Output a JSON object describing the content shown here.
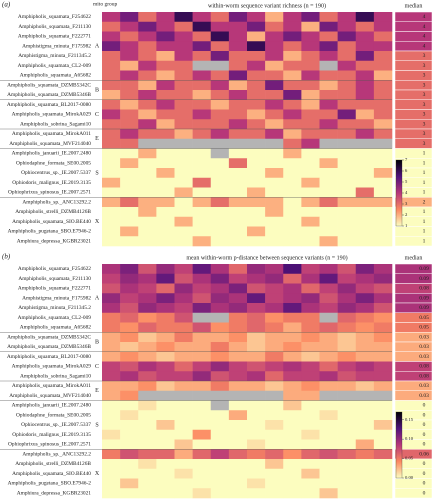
{
  "chart_data": [
    {
      "type": "heatmap",
      "panel_label": "(a)",
      "group_header": "mito group",
      "median_header": "median",
      "title": "within-worm sequence variant richness (n = 190)",
      "rows": [
        "Amphipholis_squamata_F254622",
        "Amphipholis_squamata_F211130",
        "Amphipholis_squamata_F222771",
        "Amphistigma_minuta_F175982",
        "Amphistigma_minuta_F211345.2",
        "Amphipholis_squamata_CL2-009",
        "Amphipholis_squamata_A65682",
        "Amphipholis_squamata_DZMB5342C",
        "Amphipholis_squamata_DZMB5346B",
        "Amphipholis_squamata_BL2017-0080",
        "Amphipholis_squamata_MirokA029",
        "Amphipholis_sobrina_Sagami10",
        "Amphipholis_squamata_MirokA011",
        "Amphipholis_squamata_MVF214040",
        "Amphipholis_januarii_IE.2007.2480",
        "Ophiodaphne_formata_SE00.2005",
        "Ophiocentrus_sp._IE.2007.5337",
        "Ophiodoris_malignus_IE.2019.3135",
        "Ophiophrixus_spinosus_IE.2007.2571",
        "Amphipholis_sp._ANC13292.2",
        "Amphipholis_strelli_DZMB4126B",
        "Amphipholis_squamata_SIO.BE440",
        "Amphipholis_pugetana_SBO.E7946-2",
        "Amphiura_depressa_KGBR23021"
      ],
      "group_of_row": [
        "A",
        "A",
        "A",
        "A",
        "A",
        "A",
        "A",
        "B",
        "B",
        "C",
        "C",
        "C",
        "E",
        "E",
        "S",
        "S",
        "S",
        "S",
        "S",
        "X",
        "X",
        "X",
        "X",
        "X"
      ],
      "values": [
        [
          4,
          5,
          3,
          4,
          6,
          4,
          3,
          5,
          4,
          2,
          4,
          5,
          3,
          4,
          6,
          4
        ],
        [
          3,
          4,
          5,
          4,
          3,
          6,
          4,
          4,
          5,
          3,
          4,
          2,
          5,
          4,
          3,
          4
        ],
        [
          4,
          3,
          4,
          5,
          4,
          3,
          6,
          4,
          2,
          4,
          5,
          4,
          3,
          5,
          4,
          3
        ],
        [
          5,
          4,
          3,
          4,
          4,
          5,
          3,
          4,
          6,
          4,
          3,
          4,
          5,
          3,
          4,
          4
        ],
        [
          3,
          4,
          3,
          2,
          4,
          3,
          5,
          3,
          3,
          4,
          2,
          3,
          4,
          3,
          5,
          3
        ],
        [
          3,
          2,
          4,
          3,
          3,
          null,
          null,
          3,
          4,
          2,
          3,
          3,
          null,
          4,
          3,
          3
        ],
        [
          3,
          4,
          3,
          2,
          3,
          4,
          3,
          5,
          3,
          3,
          2,
          4,
          3,
          3,
          4,
          2
        ],
        [
          3,
          3,
          2,
          4,
          3,
          3,
          4,
          2,
          3,
          5,
          3,
          3,
          2,
          3,
          4,
          3
        ],
        [
          2,
          3,
          4,
          3,
          3,
          2,
          3,
          4,
          3,
          3,
          5,
          2,
          3,
          3,
          4,
          3
        ],
        [
          3,
          2,
          3,
          4,
          3,
          3,
          2,
          3,
          3,
          4,
          3,
          2,
          4,
          3,
          3,
          3
        ],
        [
          4,
          3,
          2,
          3,
          3,
          4,
          3,
          3,
          2,
          3,
          4,
          3,
          3,
          5,
          2,
          3
        ],
        [
          3,
          3,
          4,
          2,
          3,
          3,
          3,
          4,
          3,
          2,
          3,
          3,
          4,
          3,
          3,
          2
        ],
        [
          3,
          4,
          3,
          3,
          2,
          3,
          4,
          3,
          3,
          4,
          2,
          3,
          3,
          3,
          4,
          3
        ],
        [
          3,
          3,
          null,
          null,
          null,
          null,
          null,
          null,
          null,
          null,
          3,
          4,
          null,
          null,
          null,
          null
        ],
        [
          1,
          1,
          2,
          1,
          1,
          1,
          null,
          1,
          1,
          1,
          2,
          1,
          1,
          1,
          1,
          1
        ],
        [
          1,
          2,
          1,
          1,
          1,
          1,
          1,
          3,
          1,
          1,
          1,
          1,
          2,
          1,
          1,
          1
        ],
        [
          1,
          1,
          1,
          2,
          1,
          1,
          1,
          1,
          1,
          2,
          1,
          1,
          1,
          1,
          1,
          2
        ],
        [
          2,
          1,
          1,
          1,
          1,
          3,
          1,
          1,
          1,
          1,
          1,
          2,
          1,
          1,
          1,
          1
        ],
        [
          1,
          1,
          1,
          1,
          2,
          1,
          1,
          1,
          2,
          1,
          1,
          1,
          1,
          1,
          3,
          1
        ],
        [
          2,
          3,
          2,
          2,
          1,
          2,
          3,
          2,
          2,
          2,
          1,
          2,
          3,
          2,
          2,
          2
        ],
        [
          1,
          1,
          2,
          1,
          1,
          1,
          1,
          1,
          1,
          2,
          1,
          1,
          1,
          1,
          1,
          1
        ],
        [
          1,
          1,
          1,
          1,
          2,
          1,
          1,
          1,
          1,
          1,
          1,
          2,
          1,
          1,
          1,
          1
        ],
        [
          1,
          2,
          1,
          1,
          1,
          1,
          1,
          1,
          2,
          1,
          1,
          1,
          1,
          1,
          1,
          1
        ],
        [
          1,
          1,
          1,
          1,
          1,
          2,
          1,
          1,
          1,
          1,
          1,
          1,
          2,
          1,
          1,
          1
        ]
      ],
      "medians": [
        4,
        4,
        4,
        4,
        3,
        3,
        3,
        3,
        3,
        3,
        3,
        3,
        3,
        3,
        1,
        1,
        1,
        1,
        1,
        2,
        1,
        1,
        1,
        1
      ],
      "clim": [
        1,
        7
      ],
      "cticks": [
        1,
        2,
        3,
        4,
        5,
        6,
        7
      ],
      "colormap": [
        "#fcfdbf",
        "#fc8961",
        "#b73779",
        "#51127c",
        "#000004"
      ],
      "missing_color": "#b4b4b4"
    },
    {
      "type": "heatmap",
      "panel_label": "(b)",
      "median_header": "median",
      "title": "mean within-worm p-distance between sequence variants (n = 190)",
      "rows": [
        "Amphipholis_squamata_F254622",
        "Amphipholis_squamata_F211130",
        "Amphipholis_squamata_F222771",
        "Amphistigma_minuta_F175982",
        "Amphistigma_minuta_F211345.2",
        "Amphipholis_squamata_CL2-009",
        "Amphipholis_squamata_A65682",
        "Amphipholis_squamata_DZMB5342C",
        "Amphipholis_squamata_DZMB5346B",
        "Amphipholis_squamata_BL2017-0080",
        "Amphipholis_squamata_MirokA029",
        "Amphipholis_sobrina_Sagami10",
        "Amphipholis_squamata_MirokA011",
        "Amphipholis_squamata_MVF214040",
        "Amphipholis_januarii_IE.2007.2480",
        "Ophiodaphne_formata_SE00.2005",
        "Ophiocentrus_sp._IE.2007.5337",
        "Ophiodoris_malignus_IE.2019.3135",
        "Ophiophrixus_spinosus_IE.2007.2571",
        "Amphipholis_sp._ANC13292.2",
        "Amphipholis_strelli_DZMB4126B",
        "Amphipholis_squamata_SIO.BE440",
        "Amphipholis_pugetana_SBO.E7946-2",
        "Amphiura_depressa_KGBR23021"
      ],
      "group_of_row": [
        "A",
        "A",
        "A",
        "A",
        "A",
        "A",
        "A",
        "B",
        "B",
        "C",
        "C",
        "C",
        "E",
        "E",
        "S",
        "S",
        "S",
        "S",
        "S",
        "X",
        "X",
        "X",
        "X",
        "X"
      ],
      "values": [
        [
          0.09,
          0.11,
          0.07,
          0.1,
          0.08,
          0.12,
          0.09,
          0.06,
          0.1,
          0.09,
          0.13,
          0.08,
          0.09,
          0.07,
          0.11,
          0.09
        ],
        [
          0.08,
          0.1,
          0.09,
          0.12,
          0.07,
          0.09,
          0.11,
          0.08,
          0.09,
          0.1,
          0.06,
          0.09,
          0.12,
          0.08,
          0.09,
          0.1
        ],
        [
          0.07,
          0.09,
          0.08,
          0.06,
          0.1,
          0.08,
          0.09,
          0.11,
          0.07,
          0.08,
          0.09,
          0.06,
          0.08,
          0.1,
          0.08,
          0.07
        ],
        [
          0.1,
          0.08,
          0.09,
          0.11,
          0.09,
          0.07,
          0.1,
          0.09,
          0.12,
          0.08,
          0.09,
          0.1,
          0.07,
          0.09,
          0.11,
          0.09
        ],
        [
          0.09,
          0.07,
          0.1,
          0.09,
          0.08,
          0.11,
          0.09,
          0.1,
          0.08,
          0.09,
          0.12,
          0.09,
          0.08,
          0.1,
          0.09,
          0.07
        ],
        [
          0.05,
          0.06,
          0.04,
          0.05,
          0.07,
          null,
          null,
          0.05,
          0.06,
          0.04,
          0.05,
          0.05,
          null,
          0.06,
          0.05,
          0.04
        ],
        [
          0.05,
          0.04,
          0.06,
          0.05,
          0.05,
          0.07,
          0.04,
          0.05,
          0.06,
          0.05,
          0.03,
          0.05,
          0.06,
          0.05,
          0.04,
          0.05
        ],
        [
          0.03,
          0.04,
          0.02,
          0.03,
          0.05,
          0.03,
          0.03,
          0.04,
          0.02,
          0.03,
          0.03,
          0.04,
          0.03,
          0.02,
          0.03,
          0.04
        ],
        [
          0.03,
          0.02,
          0.03,
          0.04,
          0.03,
          0.03,
          0.05,
          0.03,
          0.02,
          0.03,
          0.04,
          0.03,
          0.03,
          0.02,
          0.03,
          0.03
        ],
        [
          0.03,
          0.04,
          0.03,
          0.02,
          0.03,
          0.03,
          0.04,
          0.03,
          0.03,
          0.05,
          0.03,
          0.02,
          0.03,
          0.04,
          0.03,
          0.03
        ],
        [
          0.08,
          0.07,
          0.09,
          0.08,
          0.06,
          0.08,
          0.1,
          0.08,
          0.07,
          0.08,
          0.09,
          0.08,
          0.06,
          0.08,
          0.09,
          0.08
        ],
        [
          0.08,
          0.09,
          0.07,
          0.08,
          0.08,
          0.1,
          0.07,
          0.08,
          0.09,
          0.06,
          0.08,
          0.08,
          0.09,
          0.07,
          0.08,
          0.08
        ],
        [
          0.03,
          0.03,
          0.04,
          0.02,
          0.03,
          0.03,
          0.05,
          0.03,
          0.03,
          0.02,
          0.03,
          0.04,
          0.03,
          0.03,
          0.02,
          0.03
        ],
        [
          0.03,
          0.04,
          null,
          null,
          null,
          null,
          null,
          null,
          null,
          null,
          0.03,
          0.03,
          null,
          null,
          null,
          null
        ],
        [
          0,
          0,
          0.01,
          0,
          0,
          0,
          null,
          0,
          0,
          0,
          0.02,
          0,
          0,
          0,
          0,
          0
        ],
        [
          0,
          0.01,
          0,
          0,
          0,
          0,
          0,
          0.03,
          0,
          0,
          0,
          0,
          0.01,
          0,
          0,
          0
        ],
        [
          0,
          0,
          0,
          0.02,
          0,
          0,
          0,
          0,
          0,
          0.01,
          0,
          0,
          0,
          0,
          0,
          0.02
        ],
        [
          0.01,
          0,
          0,
          0,
          0,
          0.04,
          0,
          0,
          0,
          0,
          0,
          0.01,
          0,
          0,
          0,
          0
        ],
        [
          0,
          0,
          0,
          0,
          0.02,
          0,
          0,
          0,
          0.01,
          0,
          0,
          0,
          0,
          0,
          0.03,
          0
        ],
        [
          0.05,
          0.07,
          0.06,
          0.06,
          0.03,
          0.06,
          0.08,
          0.06,
          0.05,
          0.06,
          0.04,
          0.06,
          0.07,
          0.06,
          0.05,
          0.06
        ],
        [
          0,
          0,
          0.01,
          0,
          0,
          0,
          0,
          0,
          0,
          0.02,
          0,
          0,
          0,
          0,
          0,
          0
        ],
        [
          0,
          0,
          0,
          0,
          0.01,
          0,
          0,
          0,
          0,
          0,
          0,
          0.02,
          0,
          0,
          0,
          0
        ],
        [
          0,
          0.02,
          0,
          0,
          0,
          0,
          0,
          0,
          0.01,
          0,
          0,
          0,
          0,
          0,
          0,
          0
        ],
        [
          0,
          0,
          0,
          0,
          0,
          0.01,
          0,
          0,
          0,
          0,
          0,
          0,
          0.02,
          0,
          0,
          0
        ]
      ],
      "medians": [
        0.09,
        0.09,
        0.08,
        0.09,
        0.09,
        0.05,
        0.05,
        0.03,
        0.03,
        0.03,
        0.08,
        0.08,
        0.03,
        0.03,
        0,
        0,
        0,
        0,
        0,
        0.06,
        0,
        0,
        0,
        0
      ],
      "clim": [
        0,
        0.17
      ],
      "cticks": [
        {
          "value": 0,
          "label": "0.00"
        },
        {
          "value": 0.05,
          "label": "0.05"
        },
        {
          "value": 0.1,
          "label": "0.10"
        },
        0.15
      ],
      "colormap": [
        "#fcfdbf",
        "#fc8961",
        "#b73779",
        "#51127c",
        "#000004"
      ],
      "missing_color": "#b4b4b4"
    }
  ]
}
